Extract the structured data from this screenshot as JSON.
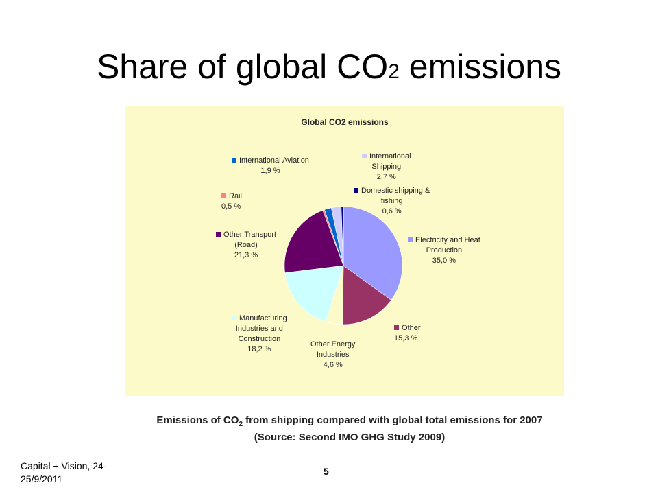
{
  "slide": {
    "title_main": "Share of global CO",
    "title_sub": "2",
    "title_end": " emissions",
    "footer_line1": "Capital + Vision, 24-",
    "footer_line2": "25/9/2011",
    "page_number": "5"
  },
  "caption": {
    "line1_a": "Emissions of CO",
    "line1_sub": "2",
    "line1_b": " from shipping compared with global total emissions for 2007",
    "line2": "(Source: Second IMO GHG Study 2009)"
  },
  "chart_data": {
    "type": "pie",
    "title": "Global CO2 emissions",
    "unit": "%",
    "slices": [
      {
        "name": "Electricity and Heat Production",
        "label_lines": [
          "Electricity and Heat",
          "Production"
        ],
        "value_text": "35,0 %",
        "value": 35.0,
        "color": "#9999ff"
      },
      {
        "name": "Other",
        "label_lines": [
          "Other"
        ],
        "value_text": "15,3 %",
        "value": 15.3,
        "color": "#993366"
      },
      {
        "name": "Other Energy Industries",
        "label_lines": [
          "Other Energy",
          "Industries"
        ],
        "value_text": "4,6 %",
        "value": 4.6,
        "color": "#fbfac8"
      },
      {
        "name": "Manufacturing Industries and Construction",
        "label_lines": [
          "Manufacturing",
          "Industries and",
          "Construction"
        ],
        "value_text": "18,2 %",
        "value": 18.2,
        "color": "#ccffff"
      },
      {
        "name": "Other Transport (Road)",
        "label_lines": [
          "Other Transport",
          "(Road)"
        ],
        "value_text": "21,3 %",
        "value": 21.3,
        "color": "#660066"
      },
      {
        "name": "Rail",
        "label_lines": [
          "Rail"
        ],
        "value_text": "0,5 %",
        "value": 0.5,
        "color": "#ff8080"
      },
      {
        "name": "International Aviation",
        "label_lines": [
          "International Aviation"
        ],
        "value_text": "1,9 %",
        "value": 1.9,
        "color": "#0066cc"
      },
      {
        "name": "International Shipping",
        "label_lines": [
          "International",
          "Shipping"
        ],
        "value_text": "2,7 %",
        "value": 2.7,
        "color": "#ccccff"
      },
      {
        "name": "Domestic shipping & fishing",
        "label_lines": [
          "Domestic shipping &",
          "fishing"
        ],
        "value_text": "0,6 %",
        "value": 0.6,
        "color": "#000080"
      }
    ]
  }
}
